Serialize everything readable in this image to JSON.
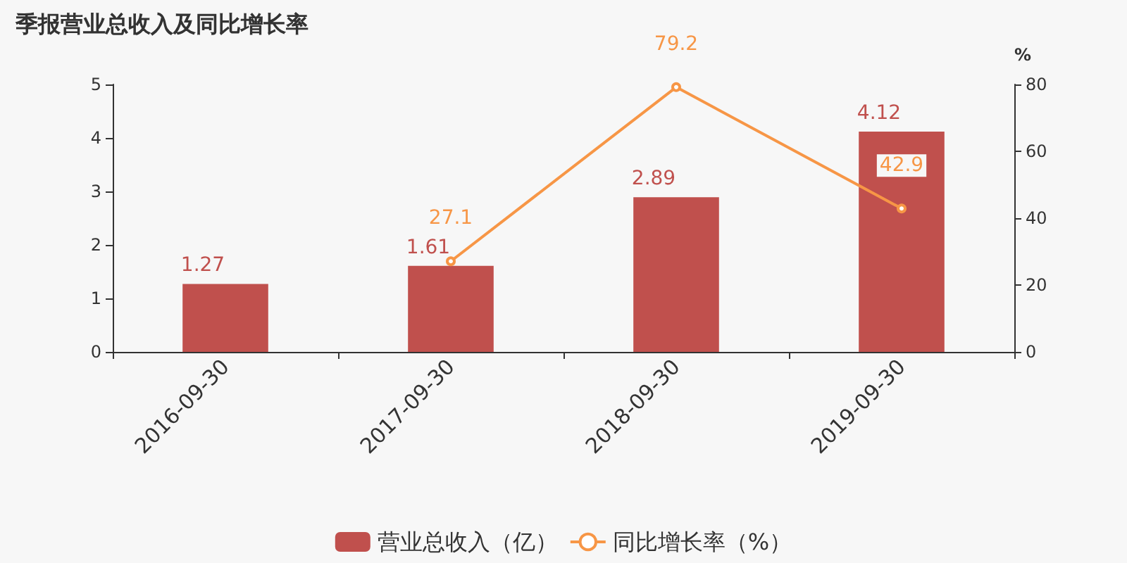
{
  "chart_data": {
    "type": "bar",
    "title": "季报营业总收入及同比增长率",
    "y2label": "%",
    "categories": [
      "2016-09-30",
      "2017-09-30",
      "2018-09-30",
      "2019-09-30"
    ],
    "series": [
      {
        "name": "营业总收入（亿）",
        "color": "#c0504d",
        "values": [
          1.27,
          1.61,
          2.89,
          4.12
        ]
      },
      {
        "name": "同比增长率（%）",
        "type": "line",
        "axis": "y2",
        "color": "#f79646",
        "marker": "circle",
        "values": [
          null,
          27.1,
          79.2,
          42.9
        ]
      }
    ],
    "data_labels": true,
    "grid": false,
    "legend": "bottom",
    "ylim": [
      0,
      5
    ],
    "yticks": [
      0,
      1,
      2,
      3,
      4,
      5
    ],
    "y2lim": [
      0,
      80
    ],
    "y2ticks": [
      0,
      20,
      40,
      60,
      80
    ]
  }
}
